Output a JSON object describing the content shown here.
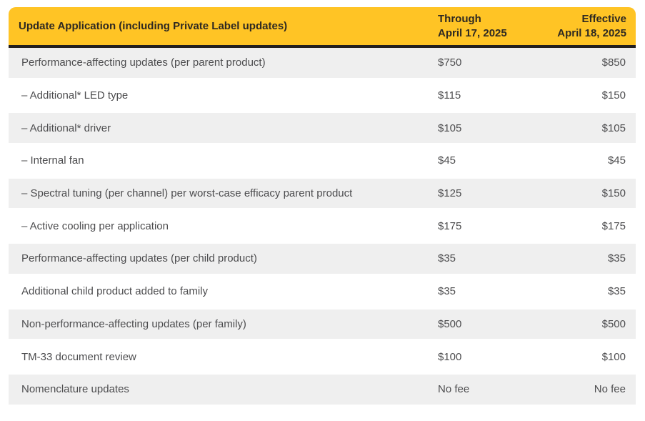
{
  "colors": {
    "header_bg": "#FFC425",
    "header_text": "#2E2922",
    "border_dark": "#221F1F",
    "row_alt_bg": "#EFEFEF",
    "body_text": "#4D4D4F"
  },
  "table": {
    "header": {
      "col1": "Update Application (including Private Label updates)",
      "col2_line1": "Through",
      "col2_line2": "April 17, 2025",
      "col3_line1": "Effective",
      "col3_line2": "April 18, 2025"
    },
    "rows": [
      {
        "label": "Performance-affecting updates (per parent product)",
        "through": "$750",
        "effective": "$850"
      },
      {
        "label": "– Additional* LED type",
        "through": "$115",
        "effective": "$150"
      },
      {
        "label": "– Additional* driver",
        "through": "$105",
        "effective": "$105"
      },
      {
        "label": "– Internal fan",
        "through": "$45",
        "effective": "$45"
      },
      {
        "label": "– Spectral tuning (per channel) per worst-case efficacy parent product",
        "through": "$125",
        "effective": "$150"
      },
      {
        "label": "– Active cooling per application",
        "through": "$175",
        "effective": "$175"
      },
      {
        "label": "Performance-affecting updates (per child product)",
        "through": "$35",
        "effective": "$35"
      },
      {
        "label": "Additional child product added to family",
        "through": "$35",
        "effective": "$35"
      },
      {
        "label": "Non-performance-affecting updates (per family)",
        "through": "$500",
        "effective": "$500"
      },
      {
        "label": "TM-33 document review",
        "through": "$100",
        "effective": "$100"
      },
      {
        "label": "Nomenclature updates",
        "through": "No fee",
        "effective": "No fee"
      }
    ]
  }
}
